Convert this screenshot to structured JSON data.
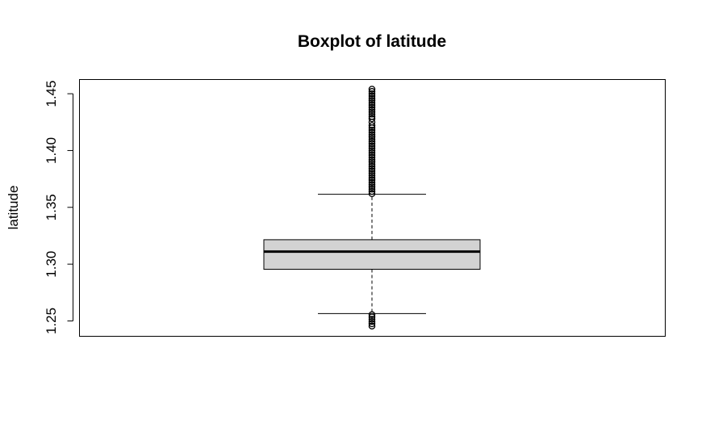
{
  "chart_data": {
    "type": "boxplot",
    "title": "Boxplot of latitude",
    "ylabel": "latitude",
    "xlabel": "",
    "ylim": [
      1.2365,
      1.4625
    ],
    "yticks": [
      1.25,
      1.3,
      1.35,
      1.4,
      1.45
    ],
    "ytick_labels": [
      "1.25",
      "1.30",
      "1.35",
      "1.40",
      "1.45"
    ],
    "grid": false,
    "box": {
      "lower_whisker": 1.2565,
      "q1": 1.2955,
      "median": 1.311,
      "q3": 1.3215,
      "upper_whisker": 1.3615
    },
    "outliers_high": [
      1.362,
      1.364,
      1.366,
      1.368,
      1.37,
      1.372,
      1.374,
      1.376,
      1.378,
      1.38,
      1.382,
      1.384,
      1.386,
      1.388,
      1.39,
      1.392,
      1.394,
      1.396,
      1.398,
      1.4,
      1.402,
      1.404,
      1.406,
      1.408,
      1.41,
      1.412,
      1.414,
      1.416,
      1.418,
      1.42,
      1.422,
      1.425,
      1.428,
      1.43,
      1.432,
      1.434,
      1.436,
      1.438,
      1.44,
      1.442,
      1.444,
      1.446,
      1.448,
      1.45,
      1.452,
      1.454
    ],
    "outliers_low": [
      1.2555,
      1.2535,
      1.2515,
      1.2495,
      1.2475,
      1.2455
    ],
    "colors": {
      "box_fill": "#d3d3d3",
      "stroke": "#000000",
      "background": "#ffffff"
    }
  }
}
